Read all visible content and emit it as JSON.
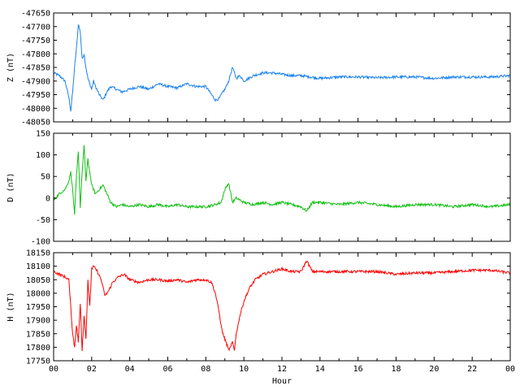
{
  "chart_data": [
    {
      "type": "line",
      "ylabel": "Z (nT)",
      "ylim": [
        -48050,
        -47650
      ],
      "yticks": [
        -47650,
        -47700,
        -47750,
        -47800,
        -47850,
        -47900,
        -47950,
        -48000,
        -48050
      ],
      "xlim": [
        0,
        24
      ],
      "color": "#1a82f0",
      "series": [
        {
          "x": [
            0,
            0.3,
            0.6,
            0.8,
            0.9,
            1.0,
            1.1,
            1.2,
            1.3,
            1.4,
            1.5,
            1.6,
            1.7,
            1.8,
            1.9,
            2.0,
            2.1,
            2.2,
            2.4,
            2.6,
            2.8,
            3.0,
            3.3,
            3.6,
            4.0,
            4.5,
            5.0,
            5.5,
            6.0,
            6.5,
            7.0,
            7.5,
            8.0,
            8.3,
            8.5,
            8.7,
            8.9,
            9.0,
            9.2,
            9.4,
            9.6,
            9.8,
            10.0,
            10.5,
            11.0,
            11.5,
            12.0,
            12.5,
            13.0,
            13.5,
            14.0,
            15.0,
            16.0,
            17.0,
            18.0,
            19.0,
            20.0,
            21.0,
            22.0,
            23.0,
            24.0
          ],
          "values": [
            -47870,
            -47880,
            -47900,
            -47960,
            -48010,
            -47940,
            -47850,
            -47780,
            -47690,
            -47720,
            -47820,
            -47800,
            -47850,
            -47890,
            -47910,
            -47930,
            -47900,
            -47920,
            -47950,
            -47970,
            -47940,
            -47920,
            -47930,
            -47940,
            -47930,
            -47920,
            -47930,
            -47910,
            -47920,
            -47925,
            -47910,
            -47920,
            -47920,
            -47950,
            -47970,
            -47965,
            -47940,
            -47930,
            -47900,
            -47850,
            -47890,
            -47880,
            -47900,
            -47880,
            -47870,
            -47870,
            -47875,
            -47880,
            -47880,
            -47885,
            -47890,
            -47885,
            -47885,
            -47888,
            -47885,
            -47885,
            -47890,
            -47885,
            -47885,
            -47885,
            -47880
          ]
        }
      ]
    },
    {
      "type": "line",
      "ylabel": "D (nT)",
      "ylim": [
        -100,
        150
      ],
      "yticks": [
        150,
        100,
        50,
        0,
        -50,
        -100
      ],
      "xlim": [
        0,
        24
      ],
      "color": "#10c010",
      "series": [
        {
          "x": [
            0,
            0.3,
            0.6,
            0.8,
            0.9,
            1.0,
            1.1,
            1.2,
            1.3,
            1.4,
            1.5,
            1.6,
            1.7,
            1.8,
            1.9,
            2.0,
            2.2,
            2.4,
            2.6,
            2.8,
            3.0,
            3.3,
            3.6,
            4.0,
            4.5,
            5.0,
            5.5,
            6.0,
            6.5,
            7.0,
            7.5,
            8.0,
            8.5,
            8.8,
            9.0,
            9.2,
            9.4,
            9.6,
            10.0,
            10.5,
            11.0,
            11.5,
            12.0,
            12.5,
            13.0,
            13.3,
            13.6,
            14.0,
            15.0,
            16.0,
            17.0,
            18.0,
            19.0,
            20.0,
            21.0,
            22.0,
            23.0,
            24.0
          ],
          "values": [
            -5,
            10,
            20,
            40,
            60,
            20,
            -40,
            50,
            110,
            -20,
            60,
            120,
            40,
            90,
            60,
            30,
            10,
            20,
            30,
            10,
            -10,
            -20,
            -15,
            -20,
            -15,
            -20,
            -15,
            -20,
            -15,
            -20,
            -20,
            -20,
            -15,
            -10,
            20,
            35,
            -10,
            0,
            -10,
            -15,
            -10,
            -15,
            -10,
            -15,
            -20,
            -30,
            -10,
            -10,
            -15,
            -10,
            -15,
            -20,
            -15,
            -15,
            -20,
            -15,
            -20,
            -15
          ]
        }
      ]
    },
    {
      "type": "line",
      "ylabel": "H (nT)",
      "ylim": [
        17750,
        18150
      ],
      "yticks": [
        18150,
        18100,
        18050,
        18000,
        17950,
        17900,
        17850,
        17800,
        17750
      ],
      "xlim": [
        0,
        24
      ],
      "xticks": [
        "00",
        "02",
        "04",
        "06",
        "08",
        "10",
        "12",
        "14",
        "16",
        "18",
        "20",
        "22",
        "00"
      ],
      "xlabel": "Hour",
      "color": "#ff0000",
      "series": [
        {
          "x": [
            0,
            0.3,
            0.6,
            0.8,
            0.9,
            1.0,
            1.1,
            1.2,
            1.3,
            1.4,
            1.5,
            1.6,
            1.7,
            1.8,
            1.9,
            2.0,
            2.1,
            2.3,
            2.5,
            2.7,
            2.9,
            3.1,
            3.4,
            3.7,
            4.0,
            4.5,
            5.0,
            5.5,
            6.0,
            6.5,
            7.0,
            7.5,
            8.0,
            8.3,
            8.5,
            8.7,
            8.8,
            8.9,
            9.0,
            9.1,
            9.2,
            9.3,
            9.4,
            9.5,
            9.6,
            9.8,
            10.0,
            10.3,
            10.6,
            11.0,
            11.5,
            12.0,
            12.5,
            13.0,
            13.3,
            13.6,
            14.0,
            15.0,
            16.0,
            17.0,
            18.0,
            19.0,
            20.0,
            21.0,
            22.0,
            23.0,
            24.0
          ],
          "values": [
            18080,
            18070,
            18060,
            18050,
            17950,
            17850,
            17800,
            17880,
            17820,
            17960,
            17790,
            17920,
            17830,
            18050,
            17950,
            18090,
            18100,
            18080,
            18050,
            17990,
            18010,
            18040,
            18060,
            18070,
            18050,
            18040,
            18050,
            18050,
            18045,
            18050,
            18040,
            18050,
            18050,
            18040,
            18000,
            17930,
            17880,
            17850,
            17830,
            17810,
            17790,
            17800,
            17820,
            17790,
            17850,
            17920,
            17970,
            18020,
            18050,
            18070,
            18080,
            18090,
            18080,
            18080,
            18120,
            18080,
            18080,
            18080,
            18080,
            18080,
            18070,
            18075,
            18075,
            18080,
            18085,
            18085,
            18075
          ]
        }
      ]
    }
  ]
}
